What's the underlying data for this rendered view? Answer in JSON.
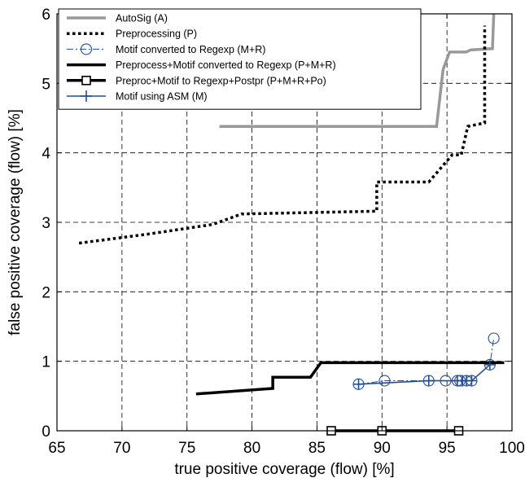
{
  "chart_data": {
    "type": "line",
    "xlabel": "true positive coverage (flow) [%]",
    "ylabel": "false positive coverage (flow) [%]",
    "xlim": [
      65,
      100
    ],
    "ylim": [
      0,
      6
    ],
    "xticks": [
      "65",
      "70",
      "75",
      "80",
      "85",
      "90",
      "95",
      "100"
    ],
    "yticks": [
      "0",
      "1",
      "2",
      "3",
      "4",
      "5",
      "6"
    ],
    "grid": true,
    "legend_position": "top-left",
    "series": [
      {
        "name": "AutoSig (A)",
        "color": "#999999",
        "style": "solid-thick",
        "marker": "none",
        "points": [
          [
            77.5,
            4.38
          ],
          [
            94.2,
            4.38
          ],
          [
            94.7,
            5.2
          ],
          [
            95.2,
            5.45
          ],
          [
            96.5,
            5.45
          ],
          [
            96.8,
            5.48
          ],
          [
            98.5,
            5.5
          ],
          [
            98.6,
            6.0
          ]
        ]
      },
      {
        "name": "Preprocessing (P)",
        "color": "#000000",
        "style": "dotted",
        "marker": "none",
        "points": [
          [
            66.7,
            2.7
          ],
          [
            72.0,
            2.83
          ],
          [
            77.0,
            2.97
          ],
          [
            79.2,
            3.12
          ],
          [
            89.6,
            3.16
          ],
          [
            89.6,
            3.58
          ],
          [
            93.6,
            3.58
          ],
          [
            95.4,
            3.97
          ],
          [
            96.1,
            3.97
          ],
          [
            96.6,
            4.38
          ],
          [
            97.9,
            4.43
          ],
          [
            97.9,
            5.83
          ]
        ]
      },
      {
        "name": "Motif converted to Regexp (M+R)",
        "color": "#1f4e9c",
        "style": "dashdot",
        "marker": "circle",
        "points": [
          [
            88.2,
            0.67
          ],
          [
            90.2,
            0.72
          ],
          [
            93.6,
            0.72
          ],
          [
            94.9,
            0.72
          ],
          [
            95.8,
            0.72
          ],
          [
            96.0,
            0.72
          ],
          [
            96.5,
            0.72
          ],
          [
            96.9,
            0.72
          ],
          [
            98.3,
            0.95
          ],
          [
            98.6,
            1.33
          ]
        ]
      },
      {
        "name": "Preprocess+Motif converted to Regexp (P+M+R)",
        "color": "#000000",
        "style": "solid-thick",
        "marker": "none",
        "points": [
          [
            75.7,
            0.53
          ],
          [
            81.6,
            0.61
          ],
          [
            81.6,
            0.77
          ],
          [
            84.5,
            0.77
          ],
          [
            85.3,
            0.98
          ],
          [
            99.4,
            0.98
          ]
        ]
      },
      {
        "name": "Preproc+Motif to Regexp+Postpr (P+M+R+Po)",
        "color": "#000000",
        "style": "solid-thick",
        "marker": "square",
        "points": [
          [
            86.1,
            0.0
          ],
          [
            90.0,
            0.0
          ],
          [
            95.9,
            0.0
          ]
        ]
      },
      {
        "name": "Motif using ASM (M)",
        "color": "#1f4e9c",
        "style": "solid",
        "marker": "plus",
        "points": [
          [
            88.2,
            0.67
          ],
          [
            93.6,
            0.72
          ],
          [
            95.8,
            0.72
          ],
          [
            96.2,
            0.72
          ],
          [
            96.5,
            0.72
          ],
          [
            96.9,
            0.72
          ],
          [
            98.3,
            0.95
          ]
        ]
      }
    ]
  }
}
